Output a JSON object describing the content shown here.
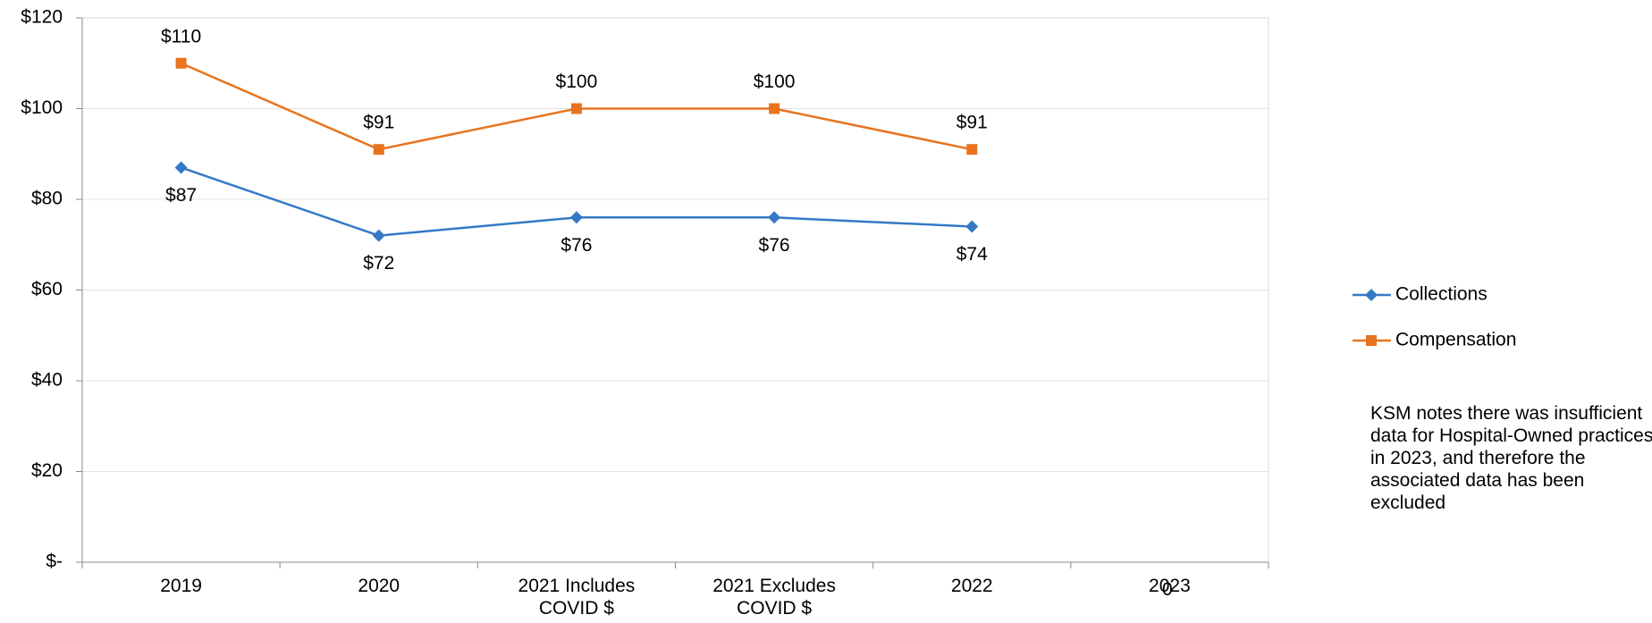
{
  "chart_data": {
    "type": "line",
    "categories": [
      "2019",
      "2020",
      "2021 Includes COVID $",
      "2021 Excludes COVID $",
      "2022",
      "2023"
    ],
    "series": [
      {
        "name": "Collections",
        "color": "#3579c6",
        "marker": "diamond",
        "label_side": "below",
        "values": [
          87,
          72,
          76,
          76,
          74,
          null
        ],
        "value_labels": [
          "$87",
          "$72",
          "$76",
          "$76",
          "$74",
          null
        ]
      },
      {
        "name": "Compensation",
        "color": "#e8731e",
        "marker": "square",
        "label_side": "above",
        "values": [
          110,
          91,
          100,
          100,
          91,
          null
        ],
        "value_labels": [
          "$110",
          "$91",
          "$100",
          "$100",
          "$91",
          null
        ]
      }
    ],
    "ylim": [
      0,
      120
    ],
    "yticks": [
      {
        "value": 0,
        "label": "$-"
      },
      {
        "value": 20,
        "label": "$20"
      },
      {
        "value": 40,
        "label": "$40"
      },
      {
        "value": 60,
        "label": "$60"
      },
      {
        "value": 80,
        "label": "$80"
      },
      {
        "value": 100,
        "label": "$100"
      },
      {
        "value": 120,
        "label": "$120"
      }
    ],
    "grid": true,
    "legend": "right",
    "annotations": [
      "0",
      "KSM notes there was insufficient data for Hospital-Owned practices in 2023, and therefore the associated data has been excluded"
    ]
  }
}
